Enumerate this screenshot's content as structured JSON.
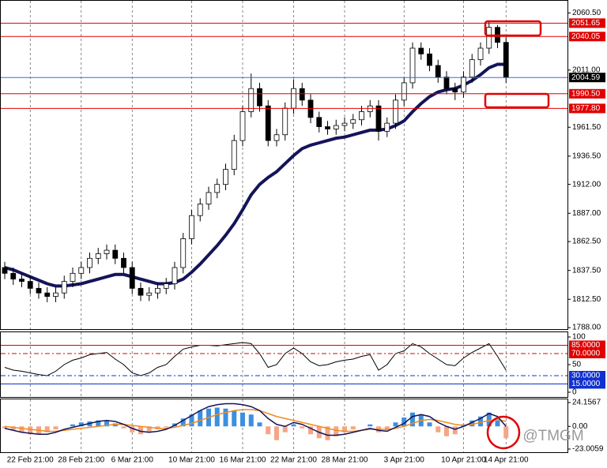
{
  "chart_data": [
    {
      "type": "candlestick",
      "ylim": [
        1786.7,
        2071.7
      ],
      "yticks": [
        {
          "value": 2060.5,
          "label": "2060.50"
        },
        {
          "value": 2011,
          "label": "2011.00"
        },
        {
          "value": 1961.5,
          "label": "1961.50"
        },
        {
          "value": 1936.5,
          "label": "1936.50"
        },
        {
          "value": 1912,
          "label": "1912.00"
        },
        {
          "value": 1887,
          "label": "1887.00"
        },
        {
          "value": 1862.5,
          "label": "1862.50"
        },
        {
          "value": 1837.5,
          "label": "1837.50"
        },
        {
          "value": 1812.5,
          "label": "1812.50"
        },
        {
          "value": 1788,
          "label": "1788.00"
        }
      ],
      "open": [
        1840,
        1835,
        1830,
        1828,
        1822,
        1818,
        1815,
        1818,
        1828,
        1835,
        1840,
        1848,
        1852,
        1855,
        1848,
        1840,
        1822,
        1816,
        1818,
        1822,
        1826,
        1840,
        1865,
        1885,
        1895,
        1905,
        1912,
        1925,
        1950,
        1975,
        1995,
        1980,
        1950,
        1955,
        1978,
        1995,
        1985,
        1970,
        1962,
        1960,
        1963,
        1965,
        1968,
        1975,
        1980,
        1958,
        1965,
        1985,
        2000,
        2030,
        2025,
        2015,
        2005,
        1995,
        1992,
        2005,
        2020,
        2030,
        2048,
        2035
      ],
      "high": [
        1845,
        1840,
        1835,
        1833,
        1827,
        1823,
        1823,
        1833,
        1840,
        1845,
        1853,
        1857,
        1860,
        1860,
        1853,
        1845,
        1827,
        1823,
        1827,
        1831,
        1845,
        1870,
        1890,
        1900,
        1910,
        1917,
        1930,
        1955,
        1980,
        2008,
        2000,
        1985,
        1960,
        1983,
        2003,
        2000,
        1990,
        1975,
        1967,
        1968,
        1970,
        1973,
        1980,
        1985,
        1985,
        1970,
        1990,
        2005,
        2035,
        2035,
        2030,
        2020,
        2010,
        2000,
        2010,
        2025,
        2035,
        2053,
        2050,
        2040
      ],
      "low": [
        1830,
        1825,
        1823,
        1817,
        1813,
        1810,
        1810,
        1813,
        1823,
        1830,
        1835,
        1843,
        1847,
        1843,
        1835,
        1817,
        1811,
        1811,
        1813,
        1817,
        1821,
        1835,
        1860,
        1880,
        1890,
        1900,
        1907,
        1920,
        1945,
        1970,
        1975,
        1945,
        1945,
        1950,
        1973,
        1980,
        1965,
        1957,
        1955,
        1955,
        1958,
        1960,
        1963,
        1970,
        1950,
        1953,
        1960,
        1980,
        1995,
        2020,
        2010,
        2000,
        1990,
        1985,
        1987,
        2000,
        2015,
        2025,
        2030,
        2000
      ],
      "close": [
        1835,
        1830,
        1828,
        1822,
        1818,
        1815,
        1818,
        1828,
        1835,
        1840,
        1848,
        1852,
        1855,
        1848,
        1840,
        1822,
        1816,
        1818,
        1822,
        1826,
        1840,
        1865,
        1885,
        1895,
        1905,
        1912,
        1925,
        1950,
        1975,
        1995,
        1980,
        1950,
        1955,
        1978,
        1995,
        1985,
        1970,
        1962,
        1960,
        1963,
        1965,
        1968,
        1975,
        1980,
        1958,
        1965,
        1985,
        2000,
        2030,
        2025,
        2015,
        2005,
        1995,
        1992,
        2005,
        2020,
        2030,
        2048,
        2035,
        2004.59
      ],
      "up_color": "#ffffff",
      "down_color": "#000000",
      "series": [
        {
          "color": "#14145a",
          "width": 4,
          "values": [
            1840,
            1838,
            1835,
            1832,
            1829,
            1826,
            1824,
            1824,
            1825,
            1826,
            1828,
            1830,
            1832,
            1834,
            1834,
            1832,
            1830,
            1828,
            1826,
            1826,
            1827,
            1830,
            1836,
            1843,
            1851,
            1859,
            1868,
            1878,
            1890,
            1903,
            1912,
            1918,
            1923,
            1930,
            1937,
            1943,
            1946,
            1948,
            1950,
            1952,
            1953,
            1955,
            1957,
            1959,
            1959,
            1960,
            1963,
            1967,
            1975,
            1982,
            1988,
            1992,
            1994,
            1995,
            1998,
            2002,
            2007,
            2013,
            2016,
            2016
          ]
        }
      ],
      "levels": [
        {
          "value": 2051.65,
          "color": "#e00000"
        },
        {
          "value": 2040.05,
          "color": "#e00000"
        },
        {
          "value": 2004.59,
          "color": "#4169e1",
          "label_color": "#000000"
        },
        {
          "value": 1990.5,
          "label": "1990.50",
          "color": "#e00000"
        },
        {
          "value": 1977.8,
          "label": "1977.80",
          "color": "#e00000"
        }
      ]
    },
    {
      "type": "line",
      "ylim": [
        -8.6,
        110
      ],
      "yticks": [
        100,
        50,
        0
      ],
      "series": [
        {
          "color": "#000000",
          "width": 1,
          "values": [
            45,
            40,
            38,
            35,
            32,
            30,
            38,
            50,
            58,
            62,
            68,
            70,
            72,
            60,
            50,
            35,
            30,
            35,
            45,
            50,
            65,
            78,
            82,
            85,
            85,
            84,
            86,
            88,
            90,
            88,
            70,
            45,
            50,
            70,
            80,
            70,
            55,
            48,
            50,
            55,
            58,
            60,
            65,
            68,
            40,
            50,
            70,
            75,
            88,
            82,
            70,
            60,
            50,
            48,
            62,
            72,
            80,
            88,
            65,
            40
          ]
        }
      ],
      "levels": [
        {
          "value": 85,
          "label": "85.0000",
          "color": "#e00000"
        },
        {
          "value": 70,
          "label": "70.0000",
          "color": "#e00000",
          "dash": true
        },
        {
          "value": 30,
          "label": "30.0000",
          "color": "#1030d0",
          "dash": true
        },
        {
          "value": 15,
          "label": "15.0000",
          "color": "#1030d0"
        }
      ]
    },
    {
      "type": "bar",
      "ylim": [
        -26.2,
        28.2
      ],
      "yticks": [
        24.1567,
        {
          "value": 0,
          "label": "0.00"
        },
        -23.0059
      ],
      "color": "#3d8fe0",
      "negative_color": "#f5a585",
      "values": [
        -2,
        -4,
        -6,
        -8,
        -8,
        -6,
        -3,
        0,
        2,
        4,
        5,
        6,
        6,
        3,
        -2,
        -6,
        -8,
        -6,
        -3,
        -1,
        3,
        8,
        12,
        16,
        18,
        19,
        18,
        16,
        14,
        12,
        4,
        -8,
        -14,
        -6,
        2,
        -2,
        -8,
        -12,
        -14,
        -10,
        -6,
        -3,
        0,
        2,
        -6,
        -4,
        4,
        9,
        14,
        12,
        4,
        -6,
        -10,
        -8,
        2,
        6,
        10,
        14,
        6,
        -12
      ],
      "series": [
        {
          "color": "#f08c1e",
          "width": 1.5,
          "values": [
            0,
            -1,
            -2,
            -3,
            -4,
            -5,
            -5,
            -4,
            -3,
            -2,
            -1,
            0,
            1,
            2,
            2,
            1,
            0,
            -1,
            -2,
            -2,
            -1,
            1,
            3,
            6,
            9,
            12,
            14,
            16,
            17,
            17,
            16,
            13,
            10,
            8,
            6,
            4,
            2,
            0,
            -2,
            -4,
            -5,
            -5,
            -4,
            -3,
            -3,
            -3,
            -2,
            0,
            3,
            6,
            7,
            6,
            4,
            2,
            1,
            2,
            4,
            6,
            7,
            5
          ]
        },
        {
          "color": "#14145a",
          "width": 1.5,
          "values": [
            -2,
            -4,
            -6,
            -7,
            -8,
            -8,
            -6,
            -3,
            -1,
            1,
            3,
            5,
            6,
            5,
            2,
            -2,
            -5,
            -6,
            -5,
            -3,
            1,
            6,
            11,
            16,
            20,
            22,
            23,
            23,
            22,
            20,
            16,
            8,
            2,
            0,
            4,
            2,
            -2,
            -6,
            -9,
            -9,
            -8,
            -6,
            -4,
            -2,
            -4,
            -5,
            -1,
            3,
            10,
            12,
            10,
            4,
            0,
            -3,
            0,
            4,
            8,
            13,
            10,
            0
          ]
        }
      ],
      "categories": [
        null,
        null,
        null,
        "22 Feb 21:00",
        null,
        null,
        null,
        null,
        null,
        "28 Feb 21:00",
        null,
        null,
        null,
        null,
        null,
        "6 Mar 21:00",
        null,
        null,
        null,
        null,
        null,
        null,
        "10 Mar 21:00",
        null,
        null,
        null,
        null,
        null,
        "16 Mar 21:00",
        null,
        null,
        null,
        null,
        null,
        "22 Mar 21:00",
        null,
        null,
        null,
        null,
        null,
        "28 Mar 21:00",
        null,
        null,
        null,
        null,
        null,
        null,
        "3 Apr 21:00",
        null,
        null,
        null,
        null,
        null,
        null,
        "10 Apr 21:00",
        null,
        null,
        null,
        null,
        "14 Apr 21:00"
      ]
    }
  ],
  "watermark": "@TMGM"
}
